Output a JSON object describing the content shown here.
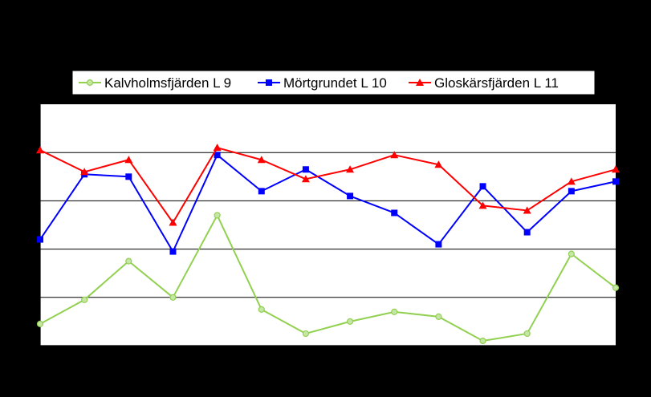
{
  "chart_data": {
    "type": "line",
    "title": "",
    "xlabel": "",
    "ylabel": "",
    "grid": "horizontal",
    "legend_position": "top",
    "background": "#ffffff",
    "page_background": "#000000",
    "ylim": [
      0,
      5
    ],
    "x": [
      1,
      2,
      3,
      4,
      5,
      6,
      7,
      8,
      9,
      10,
      11,
      12,
      13,
      14
    ],
    "series": [
      {
        "name": "Kalvholmsfjärden L 9",
        "color": "#92d050",
        "marker": "circle",
        "values": [
          0.45,
          0.95,
          1.75,
          1.0,
          2.7,
          0.75,
          0.25,
          0.5,
          0.7,
          0.6,
          0.1,
          0.25,
          1.9,
          1.2
        ]
      },
      {
        "name": "Mörtgrundet L 10",
        "color": "#0000ff",
        "marker": "square",
        "values": [
          2.2,
          3.55,
          3.5,
          1.95,
          3.95,
          3.2,
          3.65,
          3.1,
          2.75,
          2.1,
          3.3,
          2.35,
          3.2,
          3.4
        ]
      },
      {
        "name": "Gloskärsfjärden L 11",
        "color": "#ff0000",
        "marker": "triangle",
        "values": [
          4.05,
          3.6,
          3.85,
          2.55,
          4.1,
          3.85,
          3.45,
          3.65,
          3.95,
          3.75,
          2.9,
          2.8,
          3.4,
          3.65
        ]
      }
    ]
  }
}
